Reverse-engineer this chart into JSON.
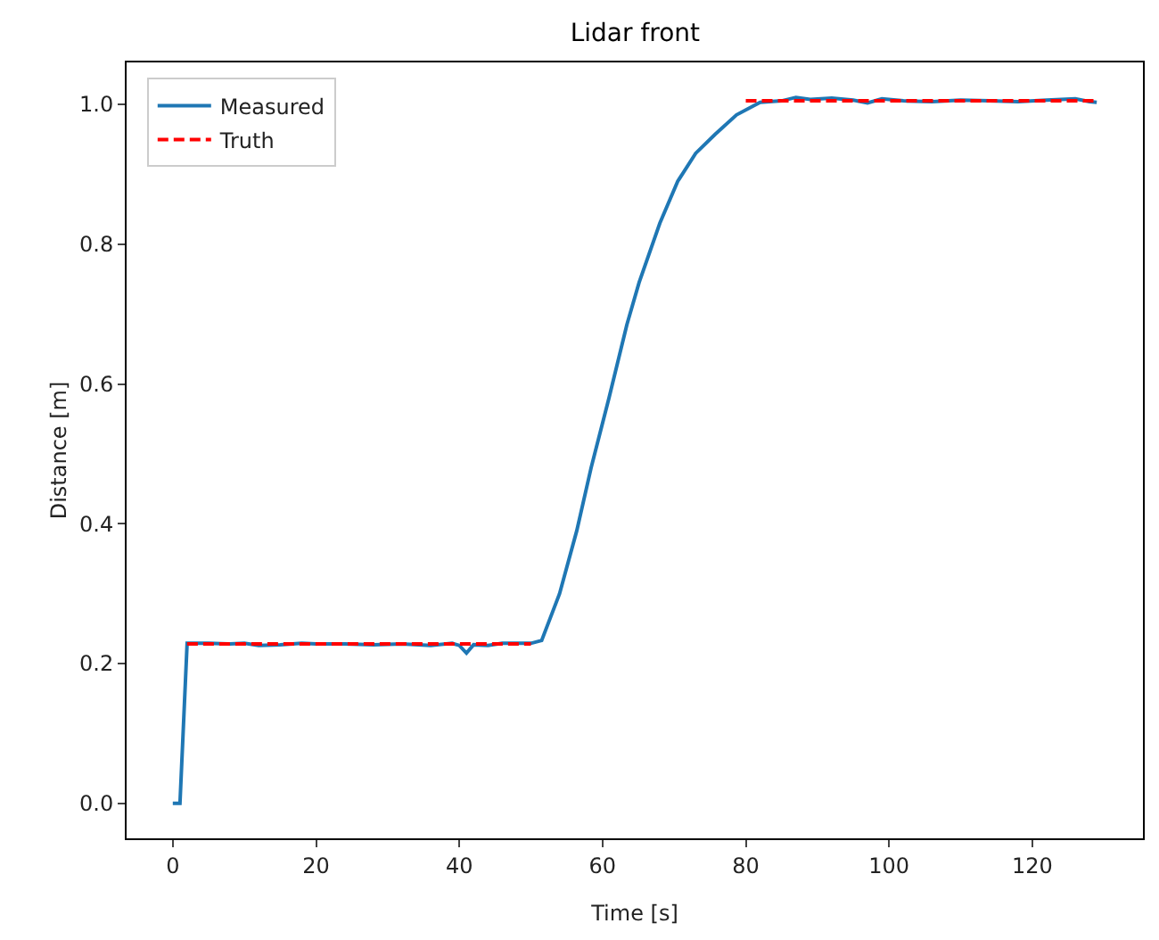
{
  "chart_data": {
    "type": "line",
    "title": "Lidar front",
    "xlabel": "Time [s]",
    "ylabel": "Distance [m]",
    "xlim": [
      -6.45,
      135.45
    ],
    "xticks": [
      0,
      20,
      40,
      60,
      80,
      100,
      120
    ],
    "ylim": [
      -0.05,
      1.06
    ],
    "yticks": [
      {
        "value": 0,
        "label": "0.0"
      },
      {
        "value": 0.2,
        "label": "0.2"
      },
      {
        "value": 0.4,
        "label": "0.4"
      },
      {
        "value": 0.6,
        "label": "0.6"
      },
      {
        "value": 0.8,
        "label": "0.8"
      },
      {
        "value": 1,
        "label": "1.0"
      }
    ],
    "grid": false,
    "legend": "top left",
    "marker": "none",
    "series": [
      {
        "name": "Measured",
        "color": "#1f77b4",
        "line_style": "solid",
        "x": [
          0,
          1,
          2,
          5,
          8,
          10,
          12,
          15,
          18,
          20,
          24,
          28,
          32,
          36,
          39,
          40,
          41,
          42,
          44,
          46,
          48,
          50,
          51.5,
          54,
          56.4,
          58.4,
          60.9,
          63.4,
          65.1,
          68,
          70.5,
          73,
          75.7,
          78.7,
          82,
          85,
          87,
          89,
          92,
          95,
          97,
          99,
          102,
          106,
          110,
          114,
          118,
          122,
          126,
          128,
          129
        ],
        "values": [
          0,
          0,
          0.229,
          0.229,
          0.228,
          0.229,
          0.226,
          0.227,
          0.229,
          0.228,
          0.228,
          0.227,
          0.228,
          0.226,
          0.229,
          0.226,
          0.215,
          0.227,
          0.226,
          0.229,
          0.229,
          0.229,
          0.233,
          0.3,
          0.39,
          0.48,
          0.58,
          0.685,
          0.745,
          0.83,
          0.89,
          0.93,
          0.957,
          0.985,
          1.003,
          1.005,
          1.01,
          1.007,
          1.009,
          1.006,
          1.002,
          1.008,
          1.005,
          1.004,
          1.006,
          1.005,
          1.004,
          1.006,
          1.008,
          1.004,
          1.003
        ]
      },
      {
        "name": "Truth",
        "color": "#ff0000",
        "line_style": "dashed",
        "x": [
          2,
          50,
          65,
          80,
          129
        ],
        "values": [
          0.228,
          0.228,
          null,
          1.005,
          1.005
        ]
      }
    ]
  }
}
